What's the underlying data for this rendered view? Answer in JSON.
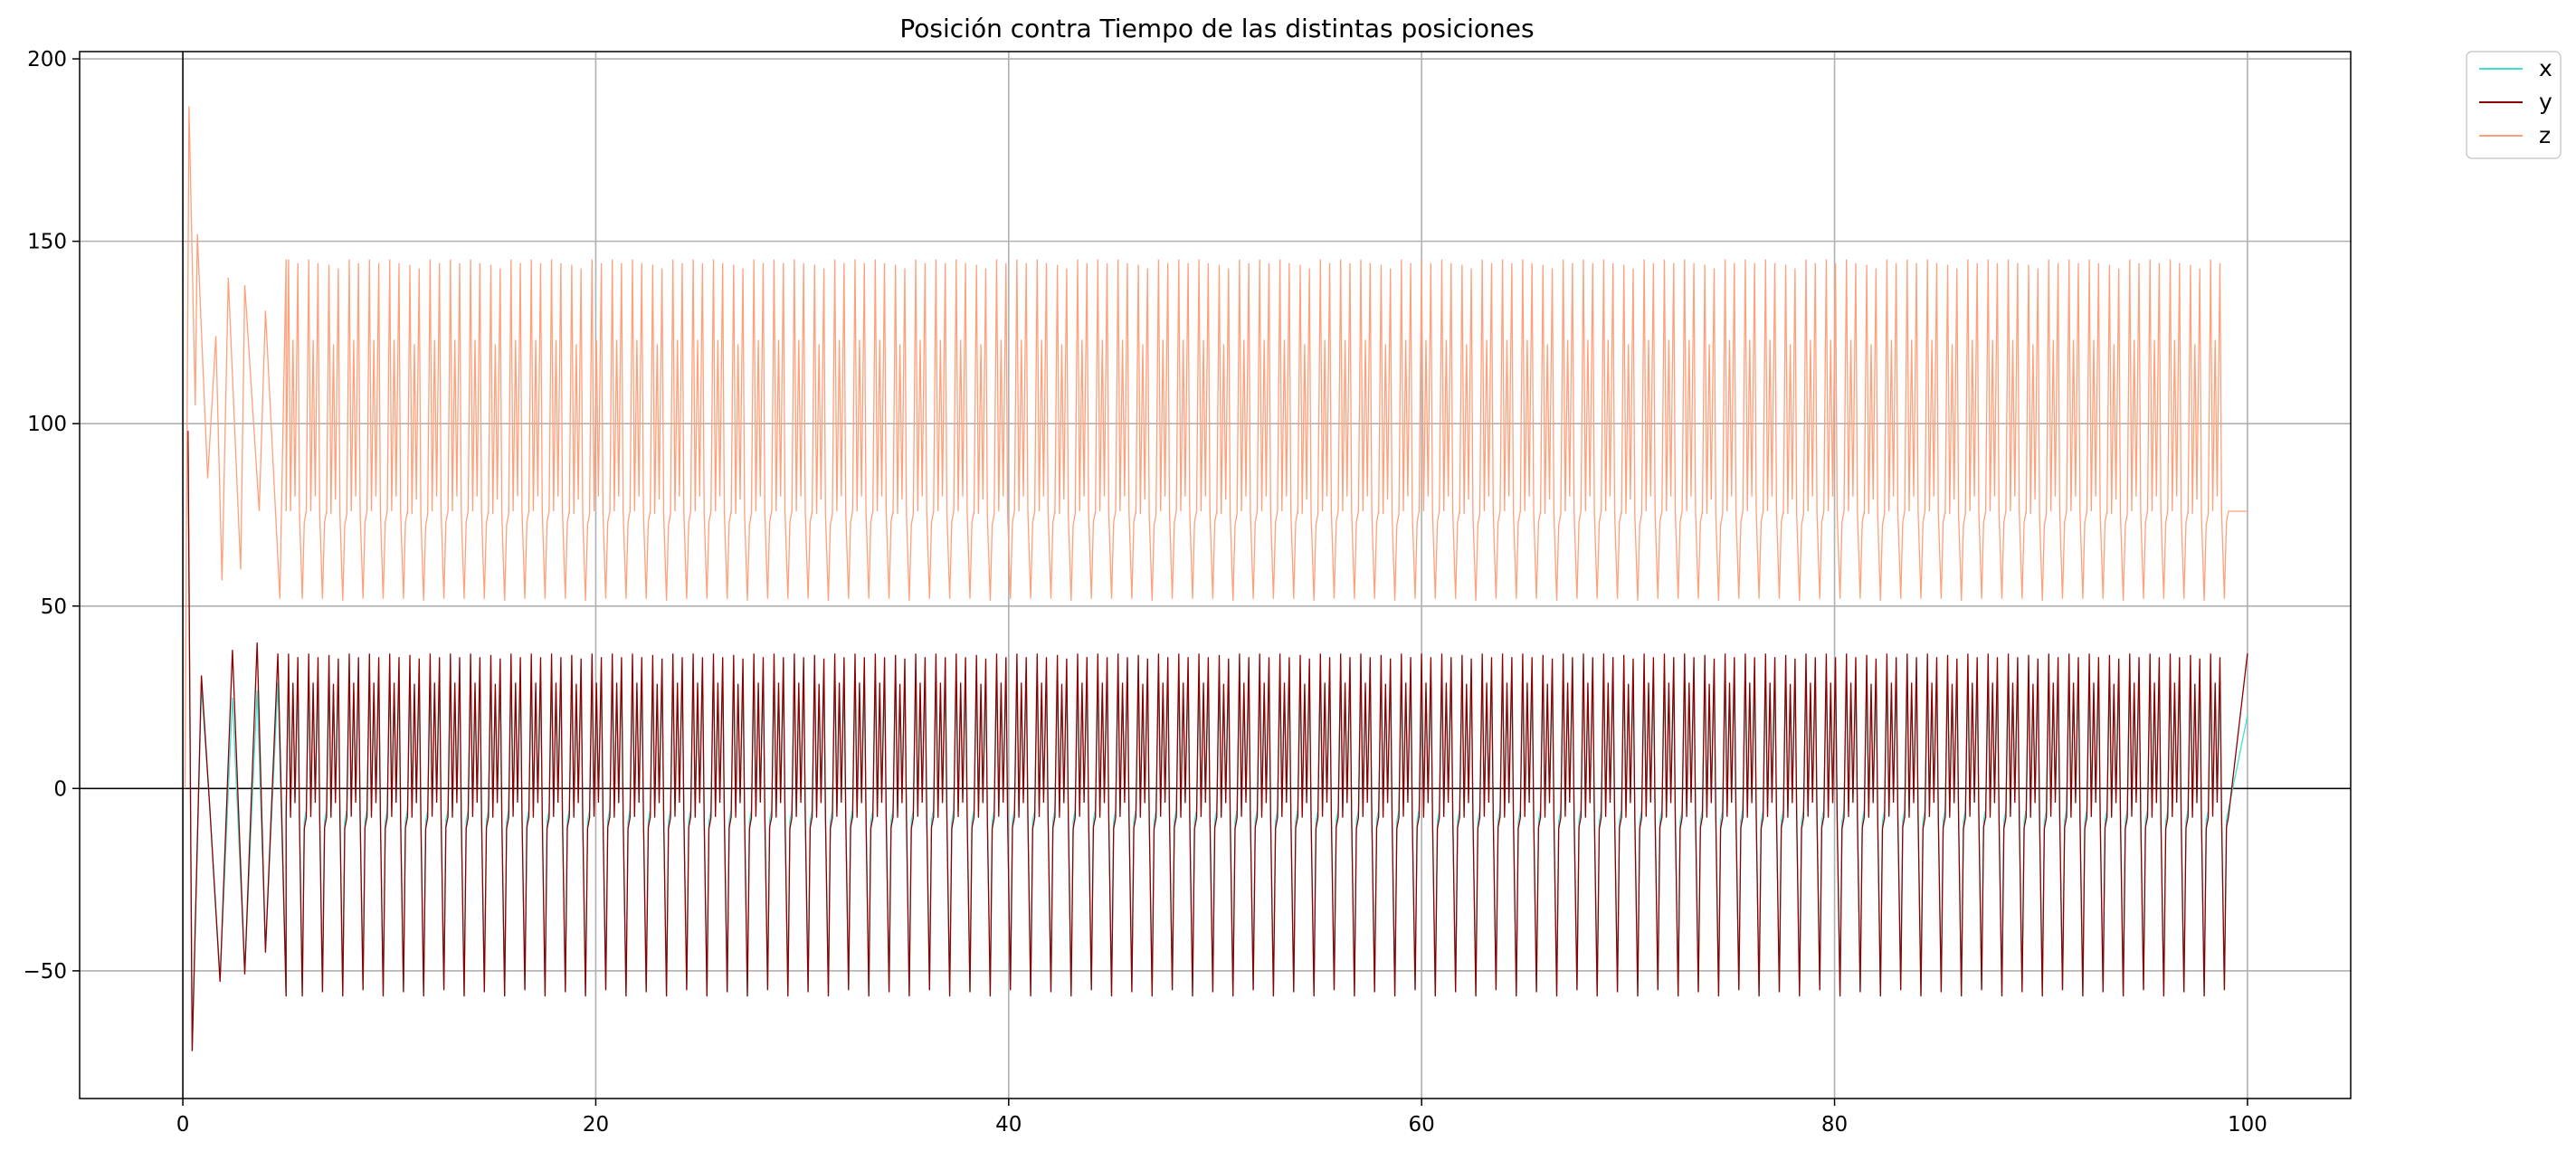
{
  "chart_data": {
    "type": "line",
    "title": "Posición contra Tiempo de las distintas posiciones",
    "xlabel": "",
    "ylabel": "",
    "xlim": [
      -5,
      105
    ],
    "ylim": [
      -85,
      202
    ],
    "x_ticks": [
      0,
      20,
      40,
      60,
      80,
      100
    ],
    "y_ticks": [
      -50,
      0,
      50,
      100,
      150,
      200
    ],
    "x_tick_labels": [
      "0",
      "20",
      "40",
      "60",
      "80",
      "100"
    ],
    "y_tick_labels": [
      "−50",
      "0",
      "50",
      "100",
      "150",
      "200"
    ],
    "grid": true,
    "reference_lines": [
      {
        "axis": "x",
        "value": 0
      },
      {
        "axis": "y",
        "value": 0
      }
    ],
    "legend": {
      "placement": "outside-top-right",
      "entries": [
        "x",
        "y",
        "z"
      ]
    },
    "series": [
      {
        "name": "x",
        "color": "#40e0d0",
        "peaks": [
          {
            "t": 0.25,
            "v": 98
          },
          {
            "t": 0.45,
            "v": -72
          },
          {
            "t": 0.9,
            "v": 28
          },
          {
            "t": 1.3,
            "v": -5
          },
          {
            "t": 1.8,
            "v": -52
          },
          {
            "t": 2.4,
            "v": 25
          },
          {
            "t": 3.0,
            "v": -50
          },
          {
            "t": 3.6,
            "v": 27
          },
          {
            "t": 4.0,
            "v": -44
          },
          {
            "t": 4.6,
            "v": 29
          },
          {
            "t": 5.0,
            "v": -57
          },
          {
            "t": 100.0,
            "v": 20
          }
        ]
      },
      {
        "name": "y",
        "color": "#8b0000",
        "peaks": [
          {
            "t": 0.25,
            "v": 98
          },
          {
            "t": 0.45,
            "v": -72
          },
          {
            "t": 0.9,
            "v": 31
          },
          {
            "t": 1.3,
            "v": -5
          },
          {
            "t": 1.8,
            "v": -53
          },
          {
            "t": 2.4,
            "v": 38
          },
          {
            "t": 3.0,
            "v": -51
          },
          {
            "t": 3.6,
            "v": 40
          },
          {
            "t": 4.0,
            "v": -45
          },
          {
            "t": 4.6,
            "v": 37
          },
          {
            "t": 5.0,
            "v": -57
          },
          {
            "t": 100.0,
            "v": 37
          }
        ]
      },
      {
        "name": "z",
        "color": "#ffa07a",
        "peaks": [
          {
            "t": 0.1,
            "v": 0
          },
          {
            "t": 0.3,
            "v": 187
          },
          {
            "t": 0.6,
            "v": 105
          },
          {
            "t": 0.7,
            "v": 152
          },
          {
            "t": 1.2,
            "v": 85
          },
          {
            "t": 1.6,
            "v": 124
          },
          {
            "t": 1.9,
            "v": 57
          },
          {
            "t": 2.2,
            "v": 140
          },
          {
            "t": 2.8,
            "v": 60
          },
          {
            "t": 3.0,
            "v": 138
          },
          {
            "t": 3.7,
            "v": 76
          },
          {
            "t": 4.0,
            "v": 131
          },
          {
            "t": 4.7,
            "v": 52
          },
          {
            "t": 5.0,
            "v": 145
          },
          {
            "t": 100.0,
            "v": 76
          }
        ]
      }
    ],
    "steady_state": {
      "start_t": 5.0,
      "end_t": 100.0,
      "period": 0.98,
      "x": {
        "high": 30,
        "low": -57,
        "mid_high": 27,
        "mid_low": -6
      },
      "y": {
        "high": 37,
        "low": -57,
        "mid_high": 29,
        "mid_low": -8
      },
      "z": {
        "high": 145,
        "low": 52,
        "mid_high": 123,
        "mid_low": 76
      }
    }
  }
}
